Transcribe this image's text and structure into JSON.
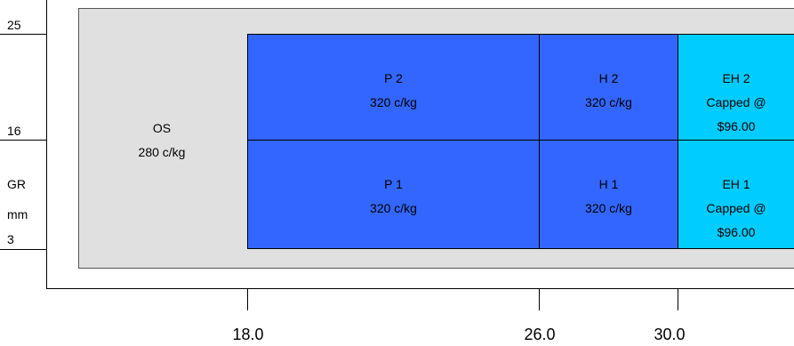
{
  "y_axis": {
    "ticks": [
      "25",
      "16",
      "3"
    ],
    "label_lines": [
      "GR",
      "mm"
    ]
  },
  "x_axis": {
    "ticks": [
      "18.0",
      "26.0",
      "30.0"
    ]
  },
  "regions": {
    "os": {
      "name": "OS",
      "price": "280 c/kg"
    },
    "p2": {
      "name": "P 2",
      "price": "320 c/kg"
    },
    "h2": {
      "name": "H 2",
      "price": "320 c/kg"
    },
    "eh2": {
      "name": "EH 2",
      "line2": "Capped @",
      "line3": "$96.00"
    },
    "p1": {
      "name": "P 1",
      "price": "320 c/kg"
    },
    "h1": {
      "name": "H 1",
      "price": "320 c/kg"
    },
    "eh1": {
      "name": "EH 1",
      "line2": "Capped @",
      "line3": "$96.00"
    }
  },
  "colors": {
    "os_fill": "#e0e0e0",
    "premium_fill": "#3366ff",
    "extra_heavy_fill": "#00ccff"
  }
}
